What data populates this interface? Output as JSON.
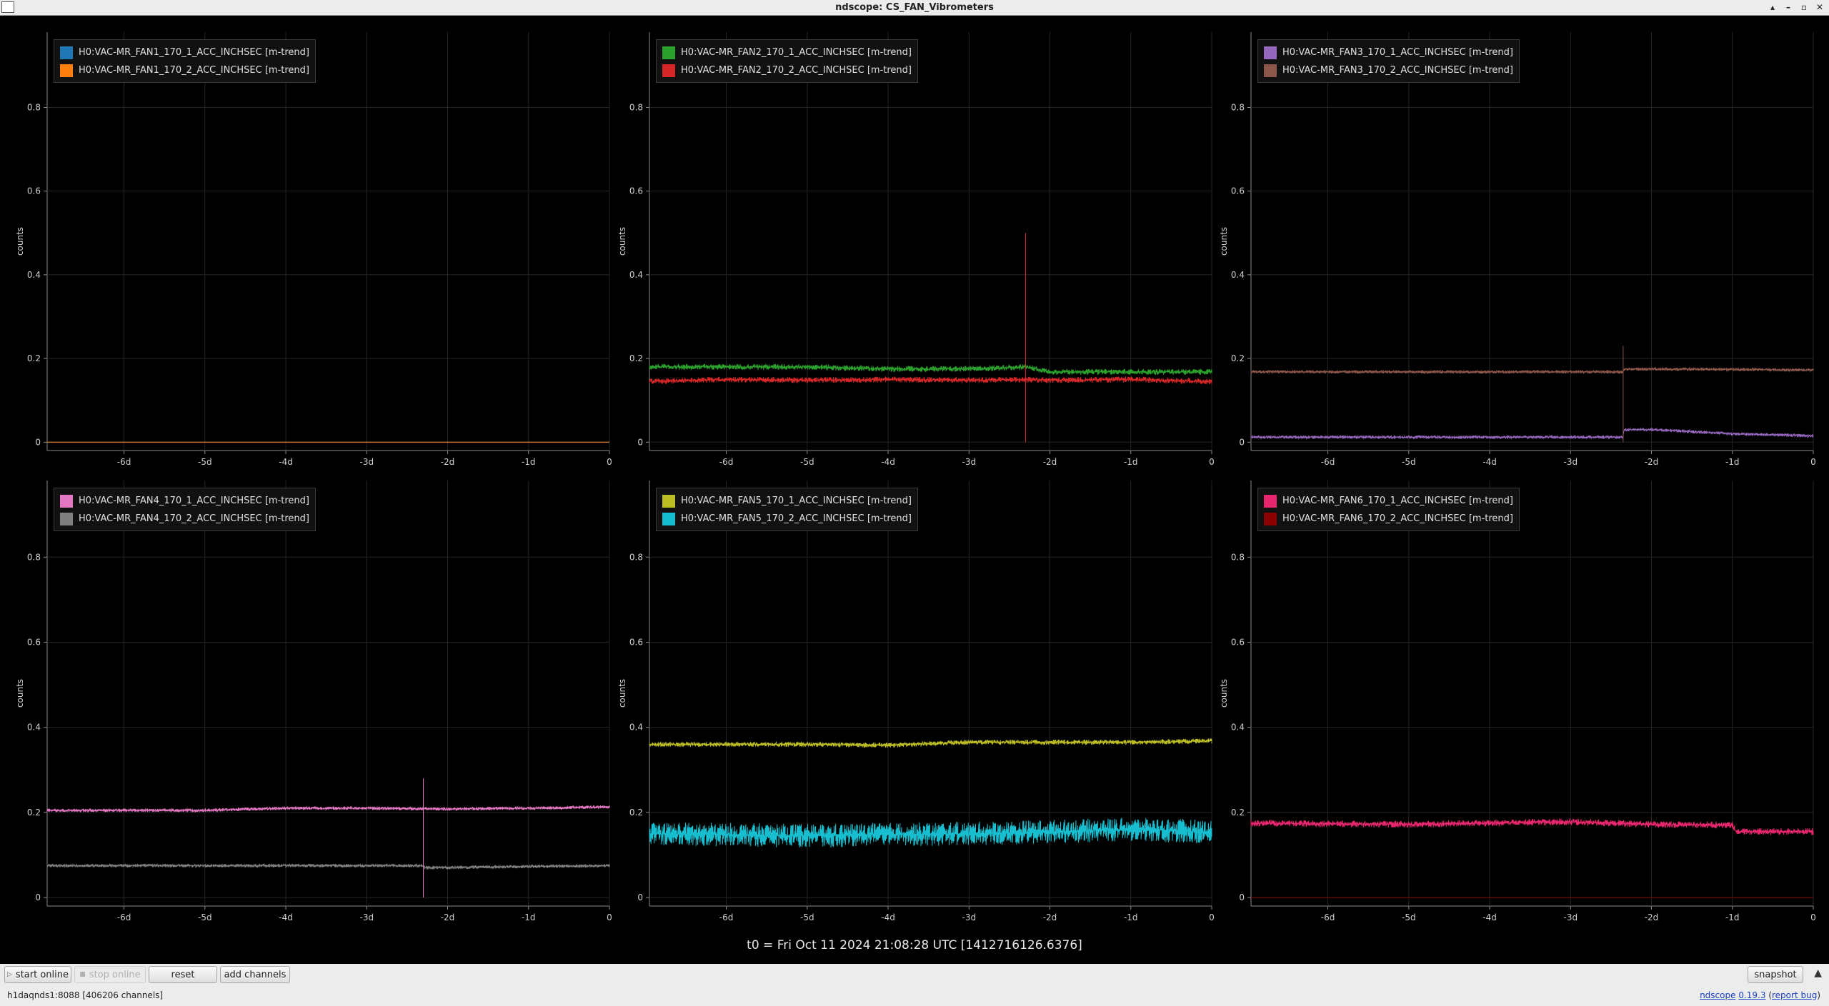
{
  "window": {
    "title": "ndscope: CS_FAN_Vibrometers",
    "controls": [
      "▴",
      "–",
      "▫",
      "✕"
    ]
  },
  "t0_label": "t0 = Fri Oct 11 2024 21:08:28 UTC [1412716126.6376]",
  "toolbar": {
    "start_online": "start online",
    "stop_online": "stop online",
    "reset": "reset",
    "add_channels": "add channels",
    "snapshot": "snapshot",
    "collapse": "▲"
  },
  "status": {
    "server": "h1daqnds1:8088",
    "channels": "[406206 channels]",
    "app_name": "ndscope",
    "version": "0.19.3",
    "report_bug": "report bug"
  },
  "chart_data": [
    {
      "type": "line",
      "ylabel": "counts",
      "x_ticks": [
        "-6d",
        "-5d",
        "-4d",
        "-3d",
        "-2d",
        "-1d",
        "0"
      ],
      "y_ticks": [
        "0",
        "0.2",
        "0.4",
        "0.6",
        "0.8"
      ],
      "xlim": [
        -6.95,
        0
      ],
      "ylim": [
        -0.02,
        0.98
      ],
      "grid": true,
      "legend_position": "top-left",
      "series": [
        {
          "name": "H0:VAC-MR_FAN1_170_1_ACC_INCHSEC [m-trend]",
          "color": "#1f77b4",
          "x": [
            -6.95,
            0
          ],
          "y": [
            0.0,
            0.0
          ]
        },
        {
          "name": "H0:VAC-MR_FAN1_170_2_ACC_INCHSEC [m-trend]",
          "color": "#ff7f0e",
          "x": [
            -6.95,
            0
          ],
          "y": [
            0.0,
            0.0
          ]
        }
      ]
    },
    {
      "type": "line",
      "ylabel": "counts",
      "x_ticks": [
        "-6d",
        "-5d",
        "-4d",
        "-3d",
        "-2d",
        "-1d",
        "0"
      ],
      "y_ticks": [
        "0",
        "0.2",
        "0.4",
        "0.6",
        "0.8"
      ],
      "xlim": [
        -6.95,
        0
      ],
      "ylim": [
        -0.02,
        0.98
      ],
      "grid": true,
      "legend_position": "top-left",
      "series": [
        {
          "name": "H0:VAC-MR_FAN2_170_1_ACC_INCHSEC [m-trend]",
          "color": "#2ca02c",
          "x": [
            -6.95,
            -6.0,
            -5.0,
            -4.0,
            -3.0,
            -2.3,
            -2.0,
            -1.0,
            0
          ],
          "y": [
            0.18,
            0.18,
            0.18,
            0.175,
            0.175,
            0.18,
            0.168,
            0.168,
            0.168
          ]
        },
        {
          "name": "H0:VAC-MR_FAN2_170_2_ACC_INCHSEC [m-trend]",
          "color": "#d62728",
          "x": [
            -6.95,
            -6.0,
            -5.0,
            -4.0,
            -3.0,
            -2.3,
            -2.0,
            -1.0,
            0
          ],
          "y": [
            0.145,
            0.15,
            0.148,
            0.15,
            0.148,
            0.15,
            0.148,
            0.15,
            0.145
          ]
        }
      ],
      "spike": {
        "x": -2.3,
        "y": [
          0.0,
          0.5
        ],
        "color": "#d62728"
      }
    },
    {
      "type": "line",
      "ylabel": "counts",
      "x_ticks": [
        "-6d",
        "-5d",
        "-4d",
        "-3d",
        "-2d",
        "-1d",
        "0"
      ],
      "y_ticks": [
        "0",
        "0.2",
        "0.4",
        "0.6",
        "0.8"
      ],
      "xlim": [
        -6.95,
        0
      ],
      "ylim": [
        -0.02,
        0.98
      ],
      "grid": true,
      "legend_position": "top-left",
      "series": [
        {
          "name": "H0:VAC-MR_FAN3_170_1_ACC_INCHSEC [m-trend]",
          "color": "#9467bd",
          "x": [
            -6.95,
            -2.35,
            -2.34,
            -2.0,
            -1.0,
            0
          ],
          "y": [
            0.012,
            0.012,
            0.03,
            0.03,
            0.02,
            0.015
          ]
        },
        {
          "name": "H0:VAC-MR_FAN3_170_2_ACC_INCHSEC [m-trend]",
          "color": "#8c564b",
          "x": [
            -6.95,
            -2.35,
            -2.34,
            -1.0,
            0
          ],
          "y": [
            0.168,
            0.168,
            0.175,
            0.174,
            0.172
          ]
        }
      ],
      "spike": {
        "x": -2.35,
        "y": [
          0.0,
          0.23
        ],
        "color": "#8c564b"
      }
    },
    {
      "type": "line",
      "ylabel": "counts",
      "x_ticks": [
        "-6d",
        "-5d",
        "-4d",
        "-3d",
        "-2d",
        "-1d",
        "0"
      ],
      "y_ticks": [
        "0",
        "0.2",
        "0.4",
        "0.6",
        "0.8"
      ],
      "xlim": [
        -6.95,
        0
      ],
      "ylim": [
        -0.02,
        0.98
      ],
      "grid": true,
      "legend_position": "top-left",
      "series": [
        {
          "name": "H0:VAC-MR_FAN4_170_1_ACC_INCHSEC [m-trend]",
          "color": "#e377c2",
          "x": [
            -6.95,
            -5.0,
            -4.0,
            -3.0,
            -2.0,
            -1.0,
            0
          ],
          "y": [
            0.205,
            0.205,
            0.21,
            0.21,
            0.208,
            0.21,
            0.213
          ]
        },
        {
          "name": "H0:VAC-MR_FAN4_170_2_ACC_INCHSEC [m-trend]",
          "color": "#7f7f7f",
          "x": [
            -6.95,
            -2.3,
            -2.29,
            0
          ],
          "y": [
            0.075,
            0.075,
            0.07,
            0.075
          ]
        }
      ],
      "spike": {
        "x": -2.3,
        "y": [
          0.0,
          0.28
        ],
        "color": "#e377c2"
      }
    },
    {
      "type": "line",
      "ylabel": "counts",
      "x_ticks": [
        "-6d",
        "-5d",
        "-4d",
        "-3d",
        "-2d",
        "-1d",
        "0"
      ],
      "y_ticks": [
        "0",
        "0.2",
        "0.4",
        "0.6",
        "0.8"
      ],
      "xlim": [
        -6.95,
        0
      ],
      "ylim": [
        -0.02,
        0.98
      ],
      "grid": true,
      "legend_position": "top-left",
      "series": [
        {
          "name": "H0:VAC-MR_FAN5_170_1_ACC_INCHSEC [m-trend]",
          "color": "#bcbd22",
          "x": [
            -6.95,
            -5.0,
            -4.0,
            -3.0,
            -2.0,
            -1.0,
            0
          ],
          "y": [
            0.36,
            0.36,
            0.358,
            0.365,
            0.365,
            0.365,
            0.368
          ]
        },
        {
          "name": "H0:VAC-MR_FAN5_170_2_ACC_INCHSEC [m-trend]",
          "color": "#17becf",
          "x": [
            -6.95,
            -5.0,
            -4.0,
            -3.0,
            -2.0,
            -1.0,
            0
          ],
          "y": [
            0.15,
            0.145,
            0.148,
            0.15,
            0.155,
            0.16,
            0.155
          ]
        }
      ]
    },
    {
      "type": "line",
      "ylabel": "counts",
      "x_ticks": [
        "-6d",
        "-5d",
        "-4d",
        "-3d",
        "-2d",
        "-1d",
        "0"
      ],
      "y_ticks": [
        "0",
        "0.2",
        "0.4",
        "0.6",
        "0.8"
      ],
      "xlim": [
        -6.95,
        0
      ],
      "ylim": [
        -0.02,
        0.98
      ],
      "grid": true,
      "legend_position": "top-left",
      "series": [
        {
          "name": "H0:VAC-MR_FAN6_170_1_ACC_INCHSEC [m-trend]",
          "color": "#e8266d",
          "x": [
            -6.95,
            -5.0,
            -4.0,
            -3.0,
            -2.0,
            -1.0,
            -0.95,
            0
          ],
          "y": [
            0.175,
            0.172,
            0.175,
            0.178,
            0.172,
            0.17,
            0.155,
            0.155
          ]
        },
        {
          "name": "H0:VAC-MR_FAN6_170_2_ACC_INCHSEC [m-trend]",
          "color": "#8b0000",
          "x": [
            -6.95,
            0
          ],
          "y": [
            0.0,
            0.0
          ]
        }
      ]
    }
  ]
}
